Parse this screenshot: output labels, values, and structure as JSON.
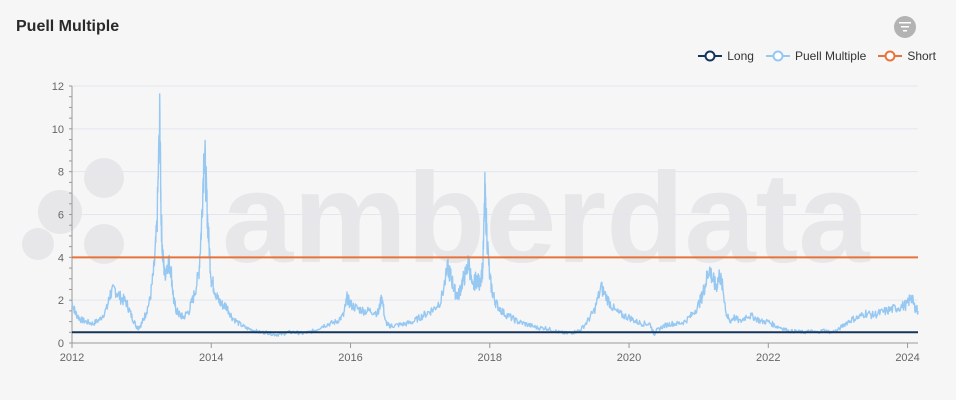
{
  "title": "Puell Multiple",
  "watermark": "amberdata",
  "toolbar": {
    "filter_icon": "filter-icon"
  },
  "legend": [
    {
      "label": "Long",
      "color": "#16355a"
    },
    {
      "label": "Puell Multiple",
      "color": "#96c8f2"
    },
    {
      "label": "Short",
      "color": "#e8733a"
    }
  ],
  "chart_data": {
    "type": "line",
    "title": "Puell Multiple",
    "xlabel": "",
    "ylabel": "",
    "xlim": [
      2012.0,
      2024.15
    ],
    "ylim": [
      0,
      12
    ],
    "x_ticks": [
      "2012",
      "2014",
      "2016",
      "2018",
      "2020",
      "2022",
      "2024"
    ],
    "y_ticks": [
      "0",
      "2",
      "4",
      "6",
      "8",
      "10",
      "12"
    ],
    "grid": true,
    "legend_position": "top-right",
    "series": [
      {
        "name": "Long",
        "type": "horizontal",
        "value": 0.5,
        "color": "#16355a"
      },
      {
        "name": "Short",
        "type": "horizontal",
        "value": 4.0,
        "color": "#e8733a"
      },
      {
        "name": "Puell Multiple",
        "color": "#96c8f2",
        "x": [
          2012.0,
          2012.05,
          2012.12,
          2012.2,
          2012.3,
          2012.4,
          2012.5,
          2012.55,
          2012.62,
          2012.7,
          2012.78,
          2012.85,
          2012.92,
          2012.95,
          2013.0,
          2013.05,
          2013.12,
          2013.18,
          2013.22,
          2013.26,
          2013.28,
          2013.3,
          2013.33,
          2013.38,
          2013.42,
          2013.46,
          2013.5,
          2013.55,
          2013.6,
          2013.68,
          2013.75,
          2013.82,
          2013.86,
          2013.9,
          2013.93,
          2013.96,
          2014.0,
          2014.05,
          2014.1,
          2014.15,
          2014.22,
          2014.3,
          2014.4,
          2014.5,
          2014.6,
          2014.7,
          2014.8,
          2014.9,
          2015.0,
          2015.1,
          2015.2,
          2015.3,
          2015.4,
          2015.5,
          2015.6,
          2015.7,
          2015.8,
          2015.9,
          2015.95,
          2016.0,
          2016.1,
          2016.2,
          2016.3,
          2016.4,
          2016.45,
          2016.5,
          2016.55,
          2016.6,
          2016.7,
          2016.8,
          2016.9,
          2017.0,
          2017.1,
          2017.2,
          2017.3,
          2017.4,
          2017.45,
          2017.5,
          2017.55,
          2017.6,
          2017.65,
          2017.7,
          2017.75,
          2017.8,
          2017.85,
          2017.9,
          2017.93,
          2017.96,
          2018.0,
          2018.05,
          2018.1,
          2018.2,
          2018.3,
          2018.4,
          2018.5,
          2018.6,
          2018.7,
          2018.8,
          2018.9,
          2019.0,
          2019.1,
          2019.2,
          2019.3,
          2019.4,
          2019.5,
          2019.6,
          2019.7,
          2019.8,
          2019.9,
          2020.0,
          2020.1,
          2020.2,
          2020.3,
          2020.36,
          2020.4,
          2020.5,
          2020.6,
          2020.7,
          2020.8,
          2020.9,
          2021.0,
          2021.05,
          2021.1,
          2021.15,
          2021.2,
          2021.25,
          2021.3,
          2021.35,
          2021.4,
          2021.45,
          2021.5,
          2021.6,
          2021.7,
          2021.8,
          2021.9,
          2022.0,
          2022.1,
          2022.2,
          2022.3,
          2022.4,
          2022.5,
          2022.6,
          2022.7,
          2022.8,
          2022.9,
          2023.0,
          2023.1,
          2023.2,
          2023.3,
          2023.4,
          2023.5,
          2023.6,
          2023.7,
          2023.8,
          2023.9,
          2024.0,
          2024.05,
          2024.1,
          2024.15
        ],
        "y": [
          1.9,
          1.4,
          1.1,
          1.0,
          0.9,
          1.1,
          1.6,
          2.3,
          2.5,
          2.1,
          1.9,
          1.3,
          0.8,
          0.7,
          0.9,
          1.3,
          2.0,
          3.5,
          5.4,
          10.5,
          6.0,
          4.2,
          3.2,
          3.8,
          3.5,
          2.0,
          1.5,
          1.3,
          1.2,
          1.5,
          2.2,
          3.2,
          5.5,
          9.3,
          7.0,
          5.0,
          3.0,
          2.5,
          2.0,
          1.8,
          1.7,
          1.2,
          0.9,
          0.7,
          0.6,
          0.5,
          0.5,
          0.4,
          0.4,
          0.5,
          0.5,
          0.45,
          0.5,
          0.6,
          0.8,
          0.9,
          1.0,
          1.3,
          2.1,
          1.8,
          1.6,
          1.5,
          1.5,
          1.4,
          2.2,
          1.0,
          0.8,
          0.8,
          0.85,
          0.9,
          1.0,
          1.2,
          1.4,
          1.6,
          2.0,
          3.5,
          3.0,
          2.4,
          2.2,
          2.8,
          3.2,
          3.8,
          2.5,
          3.0,
          2.8,
          3.5,
          7.0,
          5.0,
          3.0,
          2.2,
          1.8,
          1.4,
          1.2,
          1.0,
          0.9,
          0.8,
          0.7,
          0.7,
          0.6,
          0.5,
          0.45,
          0.5,
          0.6,
          1.0,
          1.5,
          2.6,
          2.0,
          1.5,
          1.3,
          1.2,
          1.0,
          0.9,
          0.9,
          0.4,
          0.6,
          0.8,
          0.9,
          0.9,
          1.0,
          1.3,
          1.8,
          2.2,
          2.8,
          3.5,
          3.0,
          2.6,
          3.2,
          2.5,
          1.3,
          1.0,
          1.2,
          1.0,
          1.3,
          1.2,
          1.0,
          1.0,
          0.8,
          0.7,
          0.55,
          0.55,
          0.5,
          0.55,
          0.5,
          0.6,
          0.5,
          0.6,
          0.9,
          1.1,
          1.2,
          1.4,
          1.3,
          1.4,
          1.5,
          1.6,
          1.7,
          1.8,
          2.2,
          1.7,
          1.5
        ]
      }
    ]
  }
}
